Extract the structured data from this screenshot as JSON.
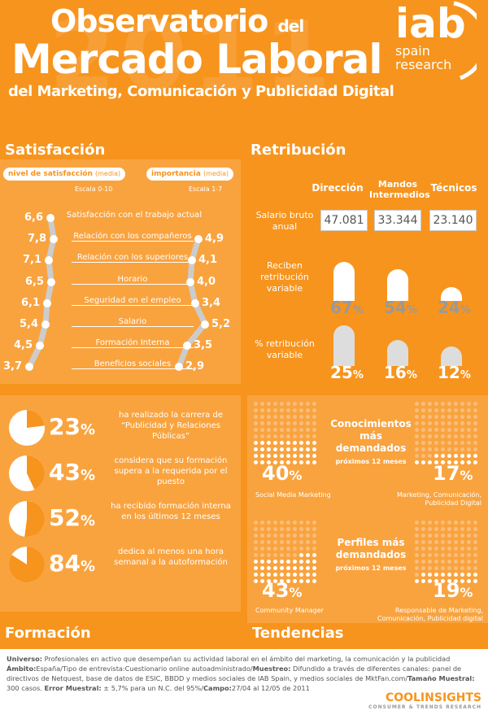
{
  "header": {
    "title_line1": "Observatorio",
    "title_line1_small": "del",
    "title_line2": "Mercado Laboral",
    "title_line3": "del Marketing, Comunicación y Publicidad Digital",
    "year_watermark": "2011",
    "logo_main": "iab",
    "logo_sub1": "spain",
    "logo_sub2": "research"
  },
  "satisfaccion": {
    "title": "Satisfacción",
    "pill_left": "nivel de satisfacción",
    "pill_left_sub": "(media)",
    "scale_left": "Escala 0-10",
    "pill_right": "importancia",
    "pill_right_sub": "(media)",
    "scale_right": "Escala 1-7",
    "items": [
      {
        "label": "Satisfacción con el trabajo actual",
        "sat": "6,6",
        "imp": ""
      },
      {
        "label": "Relación con los compañeros",
        "sat": "7,8",
        "imp": "4,9"
      },
      {
        "label": "Relación con los superiores",
        "sat": "7,1",
        "imp": "4,1"
      },
      {
        "label": "Horario",
        "sat": "6,5",
        "imp": "4,0"
      },
      {
        "label": "Seguridad en el empleo",
        "sat": "6,1",
        "imp": "3,4"
      },
      {
        "label": "Salario",
        "sat": "5,4",
        "imp": "5,2"
      },
      {
        "label": "Formación Interna",
        "sat": "4,5",
        "imp": "3,5"
      },
      {
        "label": "Beneficios sociales",
        "sat": "3,7",
        "imp": "2,9"
      }
    ]
  },
  "retribucion": {
    "title": "Retribución",
    "col1": "Dirección",
    "col2": "Mandos Intermedios",
    "col3": "Técnicos",
    "salario_label": "Salario bruto anual",
    "salario": [
      "47.081",
      "33.344",
      "23.140"
    ],
    "variable_label": "Reciben retribución variable",
    "variable": [
      "67",
      "54",
      "24"
    ],
    "pct_label": "% retribución variable",
    "pct": [
      "25",
      "16",
      "12"
    ],
    "pct_sign": "%"
  },
  "formacion": {
    "title": "Formación",
    "rows": [
      {
        "value": "23",
        "text": "ha realizado la carrera de “Publicidad y Relaciones Públicas”"
      },
      {
        "value": "43",
        "text": "considera que su formación supera a la requerida por el puesto"
      },
      {
        "value": "52",
        "text": "ha recibido formación interna en los últimos 12 meses"
      },
      {
        "value": "84",
        "text": "dedica al menos una hora semanal a la autoformación"
      }
    ]
  },
  "tendencias": {
    "title": "Tendencias",
    "block1_title": "Conocimientos más demandados",
    "block1_sub": "próximos 12 meses",
    "block1_left_value": "40",
    "block1_left_label": "Social Media Marketing",
    "block1_right_value": "17",
    "block1_right_label": "Marketing, Comunicación, Publicidad Digital",
    "block2_title": "Perfiles más demandados",
    "block2_sub": "próximos 12 meses",
    "block2_left_value": "43",
    "block2_left_label": "Community Manager",
    "block2_right_value": "19",
    "block2_right_label": "Responsable de Marketing, Comunicación, Publicidad digital"
  },
  "footer": {
    "universo_k": "Universo:",
    "universo_v": "Profesionales en activo que desempeñan su actividad laboral en el ámbito del marketing, la comunicación y la publicidad",
    "ambito_k": "Ámbito:",
    "ambito_v": "España/Tipo de entrevista:Cuestionario online autoadministrado/",
    "muestreo_k": "Muestreo:",
    "muestreo_v": "Difundido a través de diferentes canales: panel de directivos de Netquest, base de datos de ESIC, BBDD y medios sociales de IAB Spain, y medios sociales de MktFan.com/",
    "tamano_k": "Tamaño Muestral:",
    "tamano_v": "300 casos.",
    "error_k": "Error Muestral:",
    "error_v": "± 5,7% para un N.C. del 95%/",
    "campo_k": "Campo:",
    "campo_v": "27/04 al 12/05 de 2011",
    "brand": "COOLINSIGHTS",
    "brand_sub": "CONSUMER & TRENDS RESEARCH"
  }
}
